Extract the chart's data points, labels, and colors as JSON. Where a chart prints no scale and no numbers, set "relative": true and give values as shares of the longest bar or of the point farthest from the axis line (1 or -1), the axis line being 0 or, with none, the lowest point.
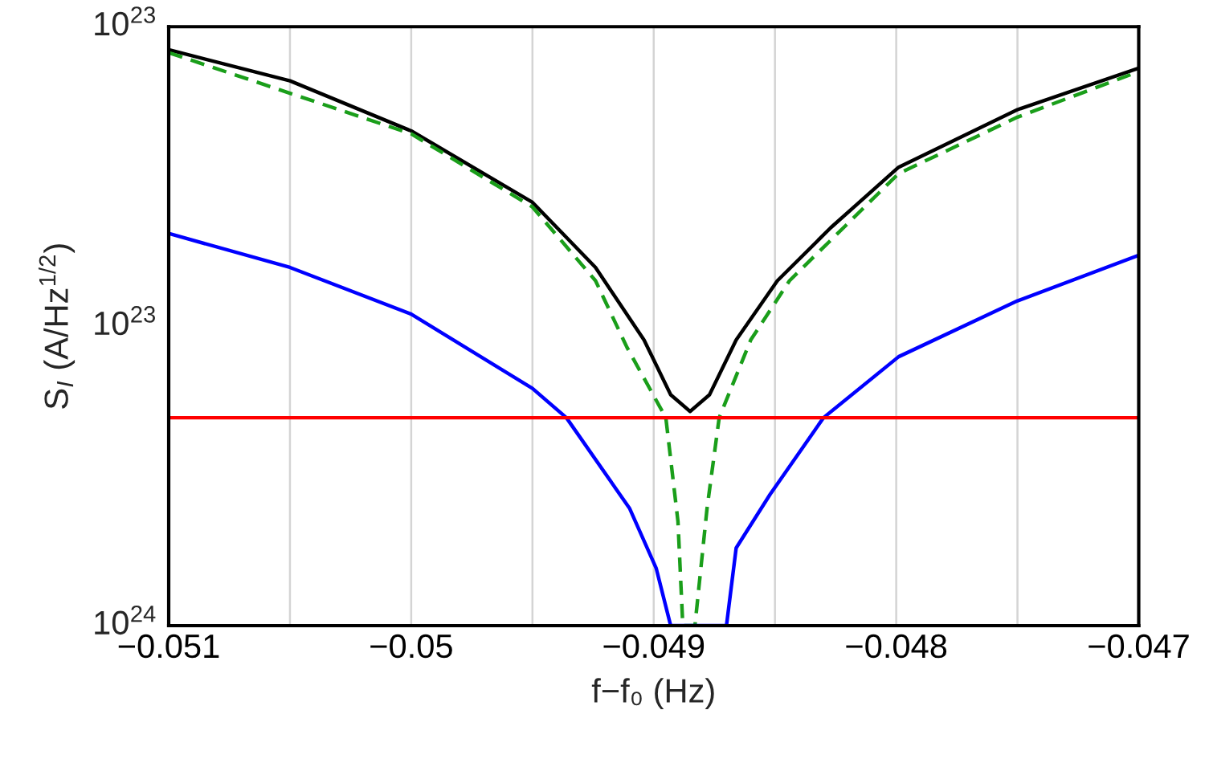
{
  "chart_data": {
    "type": "line",
    "relative": true,
    "xlabel": "f−f₀ (Hz)",
    "ylabel": "S$_{I}$ (A/Hz$^{1/2}$)",
    "grid": "x",
    "xlim": [
      -0.051,
      -0.047
    ],
    "xticks": [
      {
        "value": -0.051,
        "label": "−0.051"
      },
      {
        "value": -0.0505,
        "label": null
      },
      {
        "value": -0.05,
        "label": "−0.05"
      },
      {
        "value": -0.0495,
        "label": null
      },
      {
        "value": -0.049,
        "label": "−0.049"
      },
      {
        "value": -0.0485,
        "label": null
      },
      {
        "value": -0.048,
        "label": "−0.048"
      },
      {
        "value": -0.0475,
        "label": null
      },
      {
        "value": -0.047,
        "label": "−0.047"
      }
    ],
    "annotations": [
      "10$^{23}$",
      "10$^{23}$",
      "10$^{24}$"
    ],
    "series": [
      {
        "color": "#000000",
        "line_style": "solid",
        "x": [
          -0.051,
          -0.0505,
          -0.05,
          -0.0495,
          -0.04924,
          -0.04904,
          -0.04893,
          -0.04885,
          -0.04877,
          -0.04866,
          -0.04849,
          -0.04827,
          -0.04799,
          -0.0475,
          -0.047
        ],
        "values": [
          1.0,
          0.946,
          0.859,
          0.735,
          0.622,
          0.496,
          0.401,
          0.372,
          0.401,
          0.496,
          0.599,
          0.691,
          0.796,
          0.896,
          0.968
        ]
      },
      {
        "color": "#1a9e1a",
        "line_style": "dashed",
        "x": [
          -0.051,
          -0.05,
          -0.0495,
          -0.04924,
          -0.04911,
          -0.04895,
          -0.0489,
          -0.04888,
          -0.04883,
          -0.04878,
          -0.04873,
          -0.0486,
          -0.04844,
          -0.04799,
          -0.0475,
          -0.047
        ],
        "values": [
          0.995,
          0.854,
          0.727,
          0.599,
          0.483,
          0.361,
          0.181,
          0,
          0,
          0.204,
          0.361,
          0.496,
          0.599,
          0.785,
          0.883,
          0.962
        ]
      },
      {
        "color": "#0000ff",
        "line_style": "solid",
        "x": [
          -0.051,
          -0.0505,
          -0.05,
          -0.0495,
          -0.04936,
          -0.0491,
          -0.04899,
          -0.04893,
          -0.0487,
          -0.04866,
          -0.04852,
          -0.0483,
          -0.04799,
          -0.0475,
          -0.047
        ],
        "values": [
          0.681,
          0.622,
          0.541,
          0.412,
          0.361,
          0.204,
          0.1,
          0,
          0,
          0.135,
          0.228,
          0.361,
          0.467,
          0.564,
          0.643
        ]
      }
    ],
    "ref_lines": [
      {
        "axis": "y",
        "value": 0.361,
        "color": "#ff0000",
        "line_style": "solid"
      }
    ]
  }
}
